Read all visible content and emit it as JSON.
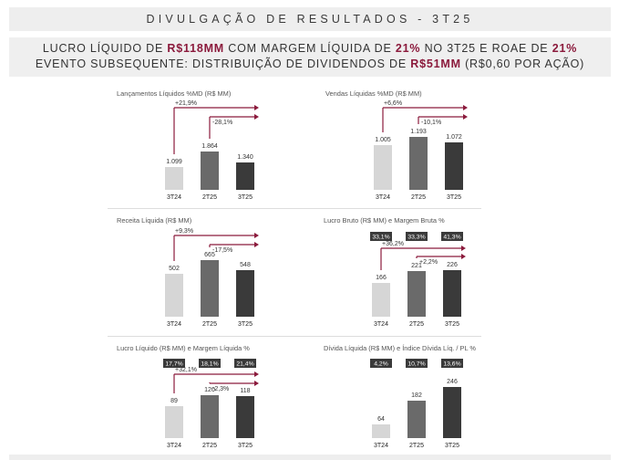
{
  "header": {
    "title": "DIVULGAÇÃO DE RESULTADOS - 3T25",
    "line1": [
      {
        "t": "LUCRO LÍQUIDO DE ",
        "h": false
      },
      {
        "t": "R$118MM",
        "h": true
      },
      {
        "t": " COM MARGEM LÍQUIDA DE ",
        "h": false
      },
      {
        "t": "21%",
        "h": true
      },
      {
        "t": " NO 3T25 E ROAE DE ",
        "h": false
      },
      {
        "t": "21%",
        "h": true
      }
    ],
    "line2": [
      {
        "t": "EVENTO SUBSEQUENTE: DISTRIBUIÇÃO DE DIVIDENDOS DE ",
        "h": false
      },
      {
        "t": "R$51MM",
        "h": true
      },
      {
        "t": " (R$0,60 POR AÇÃO)",
        "h": false
      }
    ]
  },
  "colors": {
    "bar_3T24": "#d6d6d6",
    "bar_2T25": "#6a6a6a",
    "bar_3T25": "#3a3a3a",
    "arrow": "#8b1a3c",
    "badge_bg": "#3a3a3a",
    "badge_text": "#ffffff"
  },
  "chart_data": [
    {
      "type": "bar",
      "title": "Lançamentos Líquidos %MD (R$ MM)",
      "categories": [
        "3T24",
        "2T25",
        "3T25"
      ],
      "values": [
        1099,
        1864,
        1340
      ],
      "value_labels": [
        "1.099",
        "1.864",
        "1.340"
      ],
      "badges": [],
      "changes": [
        "+21,9%",
        "-28,1%"
      ],
      "ylim": [
        0,
        1864
      ]
    },
    {
      "type": "bar",
      "title": "Vendas Líquidas %MD (R$ MM)",
      "categories": [
        "3T24",
        "2T25",
        "3T25"
      ],
      "values": [
        1005,
        1193,
        1072
      ],
      "value_labels": [
        "1.005",
        "1.193",
        "1.072"
      ],
      "badges": [],
      "changes": [
        "+6,6%",
        "-10,1%"
      ],
      "ylim": [
        0,
        1193
      ]
    },
    {
      "type": "bar",
      "title": "Receita Líquida (R$ MM)",
      "categories": [
        "3T24",
        "2T25",
        "3T25"
      ],
      "values": [
        502,
        665,
        548
      ],
      "value_labels": [
        "502",
        "665",
        "548"
      ],
      "badges": [],
      "changes": [
        "+9,3%",
        "-17,5%"
      ],
      "ylim": [
        0,
        665
      ]
    },
    {
      "type": "bar",
      "title": "Lucro Bruto (R$ MM) e Margem Bruta %",
      "categories": [
        "3T24",
        "2T25",
        "3T25"
      ],
      "values": [
        166,
        221,
        226
      ],
      "value_labels": [
        "166",
        "221",
        "226"
      ],
      "badges": [
        "33,1%",
        "33,3%",
        "41,3%"
      ],
      "changes": [
        "+36,2%",
        "+2,2%"
      ],
      "ylim": [
        0,
        226
      ]
    },
    {
      "type": "bar",
      "title": "Lucro Líquido (R$ MM) e Margem Líquida %",
      "categories": [
        "3T24",
        "2T25",
        "3T25"
      ],
      "values": [
        89,
        120,
        118
      ],
      "value_labels": [
        "89",
        "120",
        "118"
      ],
      "badges": [
        "17,7%",
        "18,1%",
        "21,4%"
      ],
      "changes": [
        "+32,1%",
        "-2,3%"
      ],
      "ylim": [
        0,
        120
      ]
    },
    {
      "type": "bar",
      "title": "Dívida Líquida (R$ MM) e Índice Dívida Líq. / PL %",
      "categories": [
        "3T24",
        "2T25",
        "3T25"
      ],
      "values": [
        64,
        182,
        246
      ],
      "value_labels": [
        "64",
        "182",
        "246"
      ],
      "badges": [
        "4,2%",
        "10,7%",
        "13,6%"
      ],
      "changes": [],
      "ylim": [
        0,
        246
      ]
    }
  ]
}
